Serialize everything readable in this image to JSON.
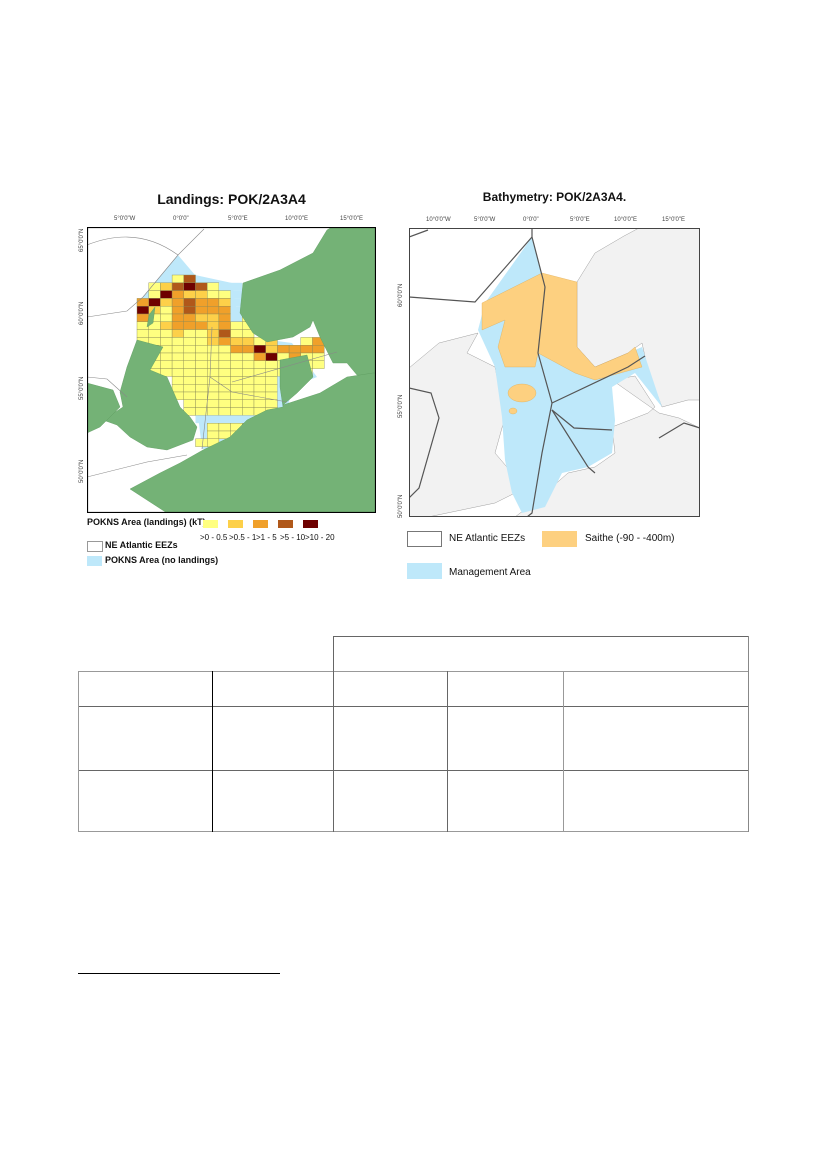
{
  "left_map": {
    "title": "Landings: POK/2A3A4",
    "x_ticks": [
      "5°0'0\"W",
      "0°0'0\"",
      "5°0'0\"E",
      "10°0'0\"E",
      "15°0'0\"E"
    ],
    "y_ticks": [
      "65°0'0\"N",
      "60°0'0\"N",
      "55°0'0\"N",
      "50°0'0\"N"
    ],
    "legend": {
      "landings_title": "POKNS Area (landings) (kT)",
      "classes": [
        {
          "label": ">0 - 0.5",
          "color": "#ffff80"
        },
        {
          "label": ">0.5 - 1",
          "color": "#fdd049"
        },
        {
          "label": ">1 - 5",
          "color": "#f0a02a"
        },
        {
          "label": ">5 - 10",
          "color": "#b0581a"
        },
        {
          "label": ">10 - 20",
          "color": "#6e0000"
        }
      ],
      "eez": "NE Atlantic EEZs",
      "no_landings": "POKNS Area (no landings)"
    },
    "colors": {
      "land": "#74b276",
      "no_landings": "#bee8fa",
      "eez_line": "#888888"
    },
    "landings_grid": [
      "...14...........",
      ".124541bb.......",
      ".1532211b.......",
      "35234332b.......",
      "52134333b1......",
      "31133223b1......",
      "1123332311......",
      "1112112411......",
      "111111232212..13",
      "1111111133523333",
      ".111111111351311",
      ".111111111111.11",
      ".111111111111.1.",
      "...111111111b...",
      "...111111111b...",
      "...111111111b...",
      "....11111111....",
      "....11111111....",
      ".....bbbbbb.....",
      "......1111......",
      "......1111......",
      ".....11.........."
    ]
  },
  "right_map": {
    "title": "Bathymetry: POK/2A3A4.",
    "x_ticks": [
      "10°0'0\"W",
      "5°0'0\"W",
      "0°0'0\"",
      "5°0'0\"E",
      "10°0'0\"E",
      "15°0'0\"E"
    ],
    "y_ticks": [
      "60°0'0\"N",
      "55°0'0\"N",
      "50°0'0\"N"
    ],
    "legend": {
      "eez": "NE Atlantic EEZs",
      "saithe": "Saithe (-90 - -400m)",
      "management": "Management Area"
    },
    "colors": {
      "land": "#f2f2f2",
      "management": "#bee8fa",
      "saithe": "#fdd080",
      "eez_line": "#555555"
    }
  }
}
